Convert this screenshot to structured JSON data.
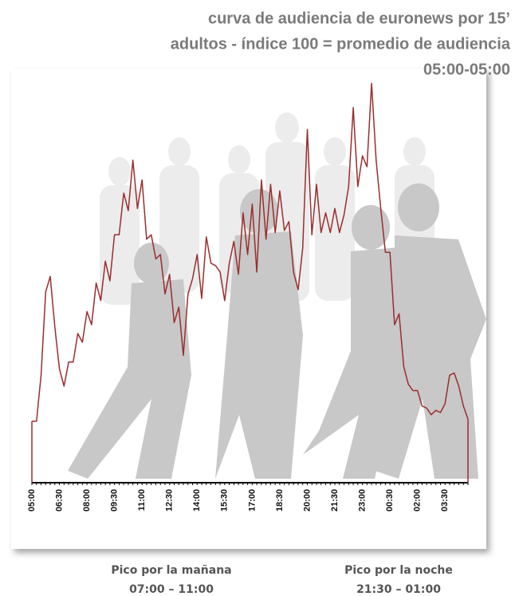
{
  "chart_data": {
    "type": "line",
    "title_lines": [
      "curva de audiencia de euronews por 15’",
      "adultos - índice 100 = promedio de audiencia",
      "05:00-05:00"
    ],
    "categories": [
      "05:00",
      null,
      null,
      null,
      null,
      null,
      "06:30",
      null,
      null,
      null,
      null,
      null,
      "08:00",
      null,
      null,
      null,
      null,
      null,
      "09:30",
      null,
      null,
      null,
      null,
      null,
      "11:00",
      null,
      null,
      null,
      null,
      null,
      "12:30",
      null,
      null,
      null,
      null,
      null,
      "14:00",
      null,
      null,
      null,
      null,
      null,
      "15:30",
      null,
      null,
      null,
      null,
      null,
      "17:00",
      null,
      null,
      null,
      null,
      null,
      "18:30",
      null,
      null,
      null,
      null,
      null,
      "20:00",
      null,
      null,
      null,
      null,
      null,
      "21:30",
      null,
      null,
      null,
      null,
      null,
      "23:00",
      null,
      null,
      null,
      null,
      null,
      "00:30",
      null,
      null,
      null,
      null,
      null,
      "02:00",
      null,
      null,
      null,
      null,
      null,
      "03:30",
      null,
      null,
      null,
      null,
      null
    ],
    "values": [
      28,
      28,
      49,
      87,
      94,
      71,
      52,
      44,
      55,
      55,
      68,
      64,
      78,
      72,
      91,
      83,
      101,
      92,
      113,
      113,
      132,
      124,
      147,
      125,
      138,
      111,
      113,
      102,
      104,
      86,
      95,
      73,
      80,
      58,
      86,
      93,
      104,
      84,
      112,
      100,
      99,
      96,
      83,
      100,
      110,
      95,
      123,
      104,
      127,
      96,
      138,
      111,
      136,
      114,
      133,
      115,
      119,
      96,
      88,
      107,
      161,
      113,
      136,
      114,
      123,
      114,
      125,
      114,
      122,
      135,
      171,
      135,
      149,
      144,
      182,
      147,
      125,
      105,
      105,
      72,
      77,
      53,
      45,
      42,
      42,
      35,
      34,
      31,
      33,
      32,
      36,
      49,
      50,
      44,
      35,
      29
    ],
    "color": "#9b2d2d",
    "ylim": [
      0,
      190
    ],
    "annotations": [
      {
        "label": "Pico por la mañana",
        "time": "07:00 – 11:00"
      },
      {
        "label": "Pico por la noche",
        "time": "21:30 – 01:00"
      }
    ]
  }
}
